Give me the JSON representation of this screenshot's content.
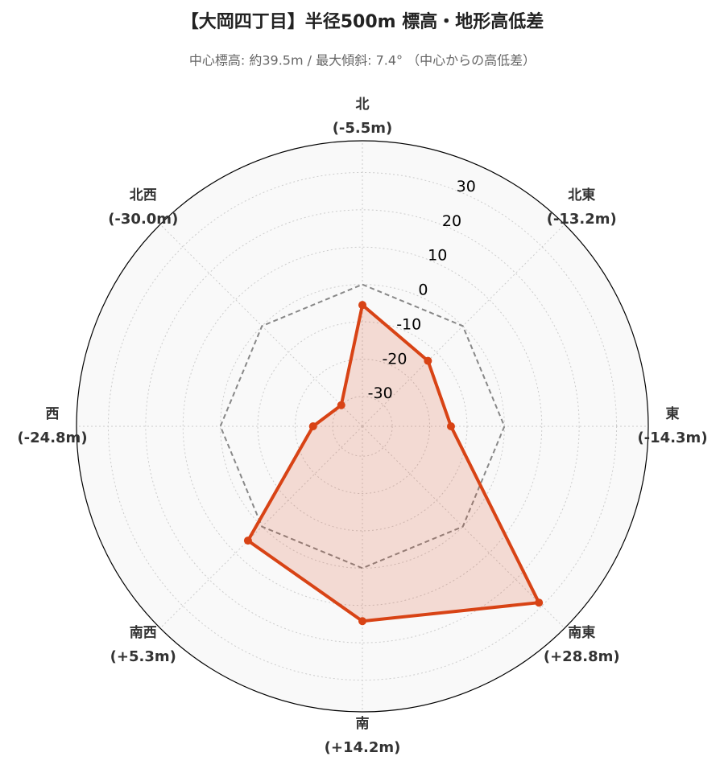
{
  "chart_data": {
    "type": "radar",
    "title": "【大岡四丁目】半径500m 標高・地形高低差",
    "subtitle": "中心標高: 約39.5m / 最大傾斜: 7.4° （中心からの高低差）",
    "categories": [
      "北",
      "北東",
      "東",
      "南東",
      "南",
      "南西",
      "西",
      "北西"
    ],
    "values": [
      -5.5,
      -13.2,
      -14.3,
      28.8,
      14.2,
      5.3,
      -24.8,
      -30.0
    ],
    "value_labels": [
      "(-5.5m)",
      "(-13.2m)",
      "(-14.3m)",
      "(+28.8m)",
      "(+14.2m)",
      "(+5.3m)",
      "(-24.8m)",
      "(-30.0m)"
    ],
    "color": "#d84315",
    "reference_line": 0,
    "ylim": [
      -38,
      38.5
    ],
    "yticks": [
      -30,
      -20,
      -10,
      0,
      10,
      20,
      30
    ],
    "grid": true
  }
}
